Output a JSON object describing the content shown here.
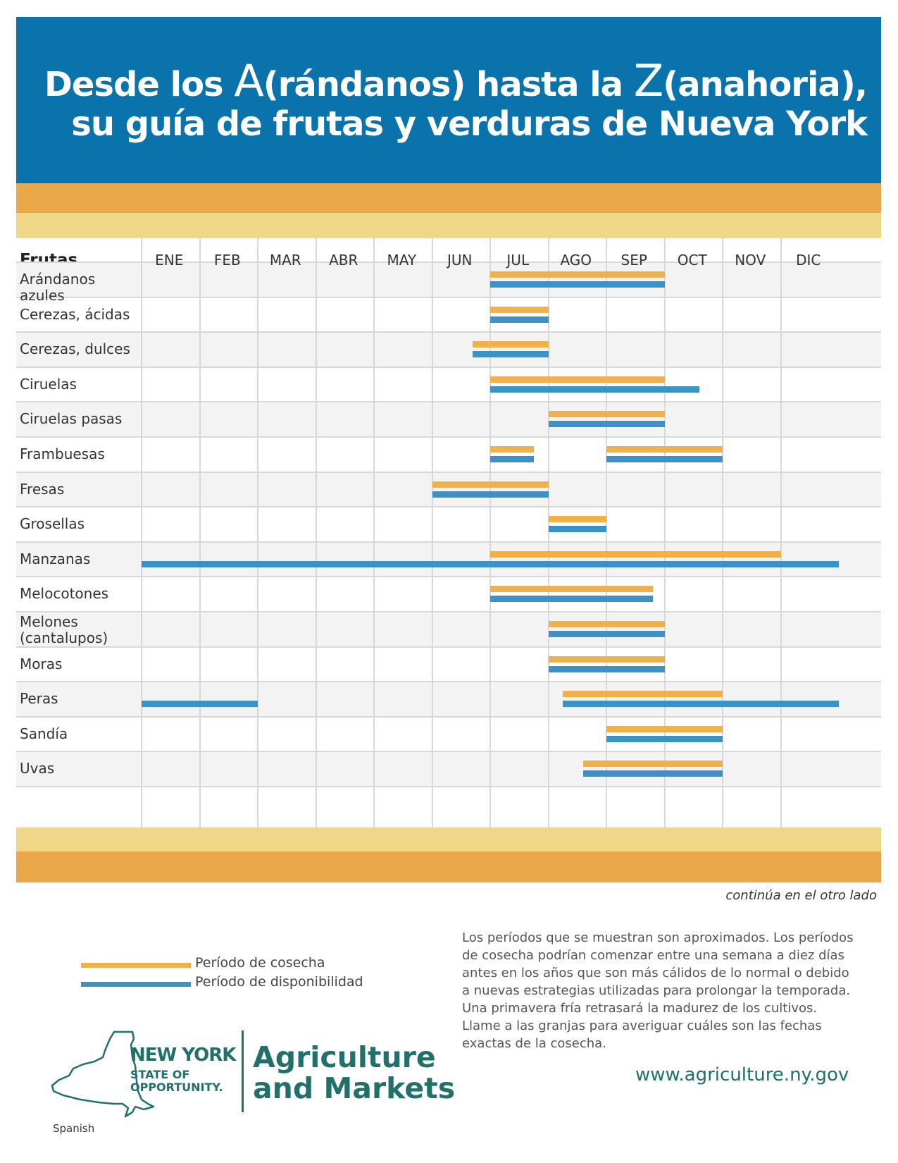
{
  "header": {
    "line1": [
      {
        "text": "Desde los ",
        "big": false
      },
      {
        "text": "A",
        "big": true
      },
      {
        "text": "(rándanos) hasta la ",
        "big": false
      },
      {
        "text": "Z",
        "big": true
      },
      {
        "text": "(anahoria),",
        "big": false
      }
    ],
    "line2": "su guía de frutas y verduras de Nueva York"
  },
  "colors": {
    "header_blue": "#0a73ac",
    "harvest": "#f2b04a",
    "availability": "#3a92c8",
    "band_orange": "#eba84a",
    "band_yellow": "#f0d788",
    "brand_teal": "#22706b"
  },
  "table": {
    "label": "Frutas",
    "months": [
      "ENE",
      "FEB",
      "MAR",
      "ABR",
      "MAY",
      "JUN",
      "JUL",
      "AGO",
      "SEP",
      "OCT",
      "NOV",
      "DIC"
    ]
  },
  "chart_data": {
    "type": "gantt",
    "x_unit": "month (0 = start of ENE, 12 = end of DIC)",
    "series_names": [
      "Período de cosecha",
      "Período de disponibilidad"
    ],
    "rows": [
      {
        "fruit": "Arándanos azules",
        "harvest": [
          [
            6,
            9
          ]
        ],
        "availability": [
          [
            6,
            9
          ]
        ]
      },
      {
        "fruit": "Cerezas, ácidas",
        "harvest": [
          [
            6,
            7
          ]
        ],
        "availability": [
          [
            6,
            7
          ]
        ]
      },
      {
        "fruit": "Cerezas, dulces",
        "harvest": [
          [
            5.7,
            7
          ]
        ],
        "availability": [
          [
            5.7,
            7
          ]
        ]
      },
      {
        "fruit": "Ciruelas",
        "harvest": [
          [
            6,
            9
          ]
        ],
        "availability": [
          [
            6,
            9.6
          ]
        ]
      },
      {
        "fruit": "Ciruelas pasas",
        "harvest": [
          [
            7,
            9
          ]
        ],
        "availability": [
          [
            7,
            9
          ]
        ]
      },
      {
        "fruit": "Frambuesas",
        "harvest": [
          [
            6,
            6.75
          ],
          [
            8,
            10
          ]
        ],
        "availability": [
          [
            6,
            6.75
          ],
          [
            8,
            10
          ]
        ]
      },
      {
        "fruit": "Fresas",
        "harvest": [
          [
            5,
            7
          ]
        ],
        "availability": [
          [
            5,
            7
          ]
        ]
      },
      {
        "fruit": "Grosellas",
        "harvest": [
          [
            7,
            8
          ]
        ],
        "availability": [
          [
            7,
            8
          ]
        ]
      },
      {
        "fruit": "Manzanas",
        "harvest": [
          [
            6,
            11
          ]
        ],
        "availability": [
          [
            0,
            12
          ]
        ]
      },
      {
        "fruit": "Melocotones",
        "harvest": [
          [
            6,
            8.8
          ]
        ],
        "availability": [
          [
            6,
            8.8
          ]
        ]
      },
      {
        "fruit": "Melones (cantalupos)",
        "harvest": [
          [
            7,
            9
          ]
        ],
        "availability": [
          [
            7,
            9
          ]
        ]
      },
      {
        "fruit": "Moras",
        "harvest": [
          [
            7,
            9
          ]
        ],
        "availability": [
          [
            7,
            9
          ]
        ]
      },
      {
        "fruit": "Peras",
        "harvest": [
          [
            7.25,
            10
          ]
        ],
        "availability": [
          [
            0,
            2
          ],
          [
            7.25,
            12
          ]
        ]
      },
      {
        "fruit": "Sandía",
        "harvest": [
          [
            8,
            10
          ]
        ],
        "availability": [
          [
            8,
            10
          ]
        ]
      },
      {
        "fruit": "Uvas",
        "harvest": [
          [
            7.6,
            10
          ]
        ],
        "availability": [
          [
            7.6,
            10
          ]
        ]
      }
    ]
  },
  "continues": "continúa en el otro lado",
  "legend": {
    "harvest_label": "Período de cosecha",
    "availability_label": "Período de disponibilidad"
  },
  "note": "Los períodos que se muestran son aproximados. Los períodos de cosecha podrían comenzar entre una semana a diez días antes en los años que son más cálidos de lo normal o debido a nuevas estrategias utilizadas para prolongar la temporada. Una primavera fría retrasará la madurez de los cultivos. Llame a las granjas para averiguar cuáles son las fechas exactas de la cosecha.",
  "footer": {
    "ny_line1": "NEW YORK",
    "ny_line2": "STATE OF",
    "ny_line3": "OPPORTUNITY.",
    "agency_line1": "Agriculture",
    "agency_line2": "and Markets",
    "url": "www.agriculture.ny.gov",
    "language": "Spanish"
  }
}
